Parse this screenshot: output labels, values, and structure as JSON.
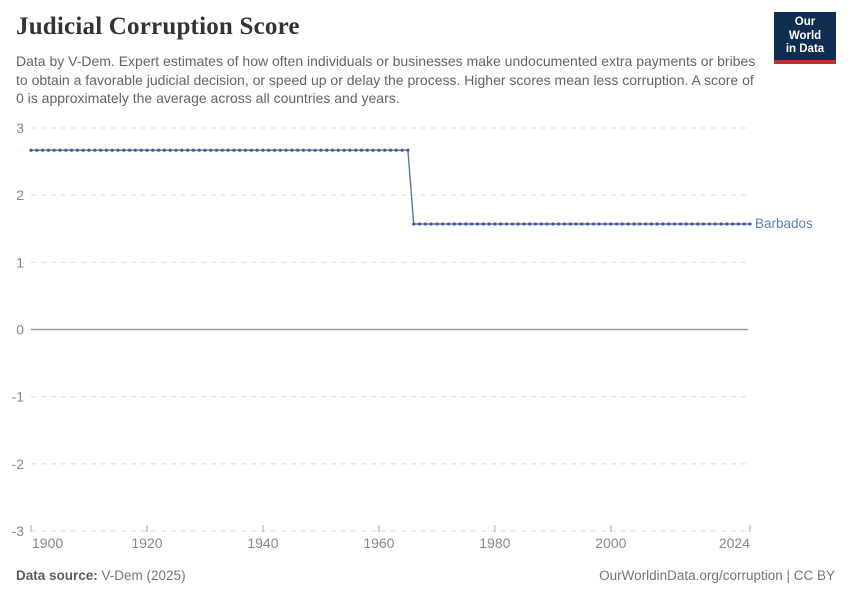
{
  "header": {
    "title": "Judicial Corruption Score",
    "subtitle": "Data by V-Dem. Expert estimates of how often individuals or businesses make undocumented extra payments or bribes to obtain a favorable judicial decision, or speed up or delay the process. Higher scores mean less corruption. A score of 0 is approximately the average across all countries and years.",
    "logo": {
      "line1": "Our World",
      "line2": "in Data",
      "bg_color": "#0f2d50",
      "accent_color": "#be322d"
    }
  },
  "chart_data": {
    "type": "line",
    "title": "Judicial Corruption Score",
    "xlabel": "",
    "ylabel": "",
    "xlim": [
      1900,
      2024
    ],
    "ylim": [
      -3,
      3
    ],
    "x_ticks": [
      1900,
      1920,
      1940,
      1960,
      1980,
      2000,
      2024
    ],
    "y_ticks": [
      3,
      2,
      1,
      0,
      -1,
      -2,
      -3
    ],
    "grid": "horizontal dashed, solid zero line",
    "legend_position": "right of line (entity label)",
    "series": [
      {
        "name": "Barbados",
        "line_color": "#5a74a6",
        "marker_color": "#3f5e9d",
        "label_color": "#5b7fbe",
        "points_every_years": 1,
        "segments": [
          {
            "from_year": 1900,
            "to_year": 1965,
            "value": 2.67
          },
          {
            "from_year": 1966,
            "to_year": 2024,
            "value": 1.57
          }
        ]
      }
    ],
    "colors": {
      "gridline": "#dcdcdc",
      "zero_line": "#999999",
      "tick_mark": "#aaaaaa",
      "axis_label": "#888888"
    }
  },
  "footer": {
    "source_label": "Data source:",
    "source_value": " V-Dem (2025)",
    "credit": "OurWorldinData.org/corruption | CC BY"
  }
}
